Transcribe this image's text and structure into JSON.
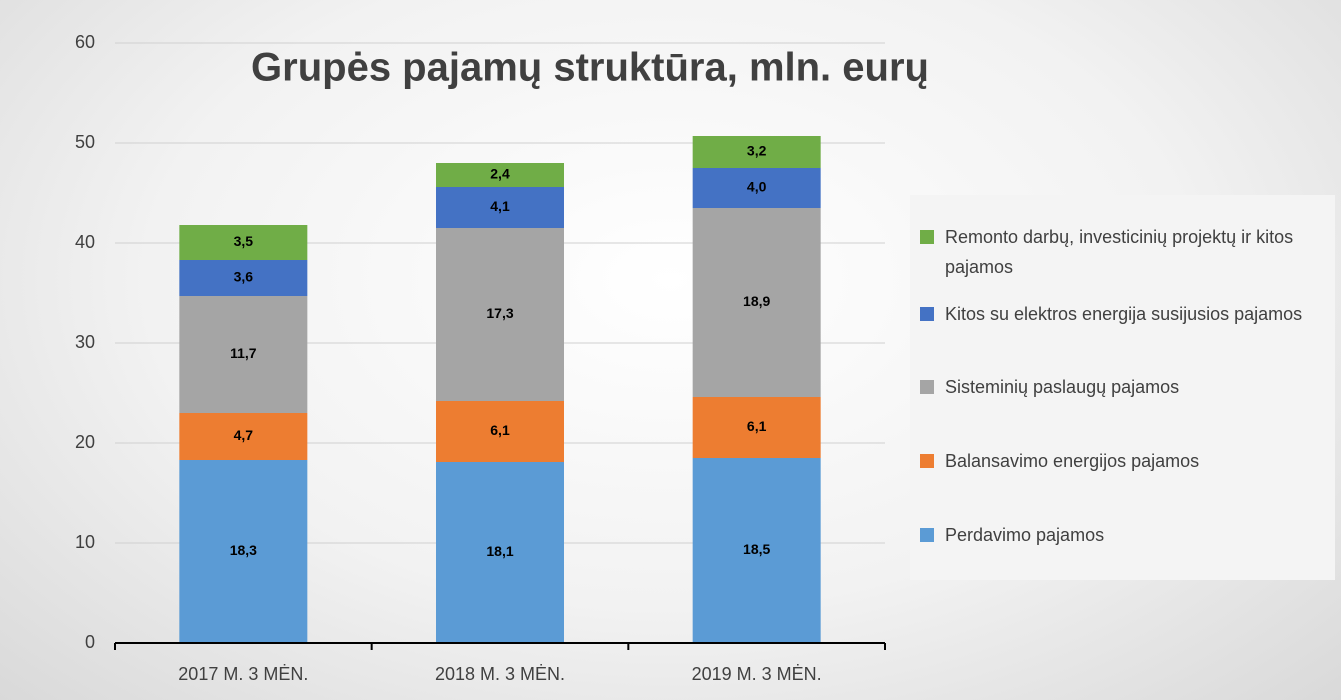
{
  "chart_data": {
    "type": "stacked_bar",
    "title": "Grupės pajamų struktūra, mln. eurų",
    "categories": [
      "2017 M. 3 MĖN.",
      "2018 M. 3 MĖN.",
      "2019 M. 3 MĖN."
    ],
    "series": [
      {
        "name": "Perdavimo pajamos",
        "color": "#5b9bd5",
        "values": [
          18.3,
          18.1,
          18.5
        ],
        "value_labels": [
          "18,3",
          "18,1",
          "18,5"
        ]
      },
      {
        "name": "Balansavimo energijos pajamos",
        "color": "#ed7d31",
        "values": [
          4.7,
          6.1,
          6.1
        ],
        "value_labels": [
          "4,7",
          "6,1",
          "6,1"
        ]
      },
      {
        "name": "Sisteminių paslaugų pajamos",
        "color": "#a5a5a5",
        "values": [
          11.7,
          17.3,
          18.9
        ],
        "value_labels": [
          "11,7",
          "17,3",
          "18,9"
        ]
      },
      {
        "name": "Kitos su elektros energija susijusios pajamos",
        "color": "#4472c4",
        "values": [
          3.6,
          4.1,
          4.0
        ],
        "value_labels": [
          "3,6",
          "4,1",
          "4,0"
        ]
      },
      {
        "name": "Remonto darbų, investicinių projektų ir kitos pajamos",
        "color": "#70ad47",
        "values": [
          3.5,
          2.4,
          3.2
        ],
        "value_labels": [
          "3,5",
          "2,4",
          "3,2"
        ]
      }
    ],
    "ylim": [
      0,
      60
    ],
    "yticks": [
      0,
      10,
      20,
      30,
      40,
      50,
      60
    ],
    "grid": true,
    "legend": "right"
  }
}
